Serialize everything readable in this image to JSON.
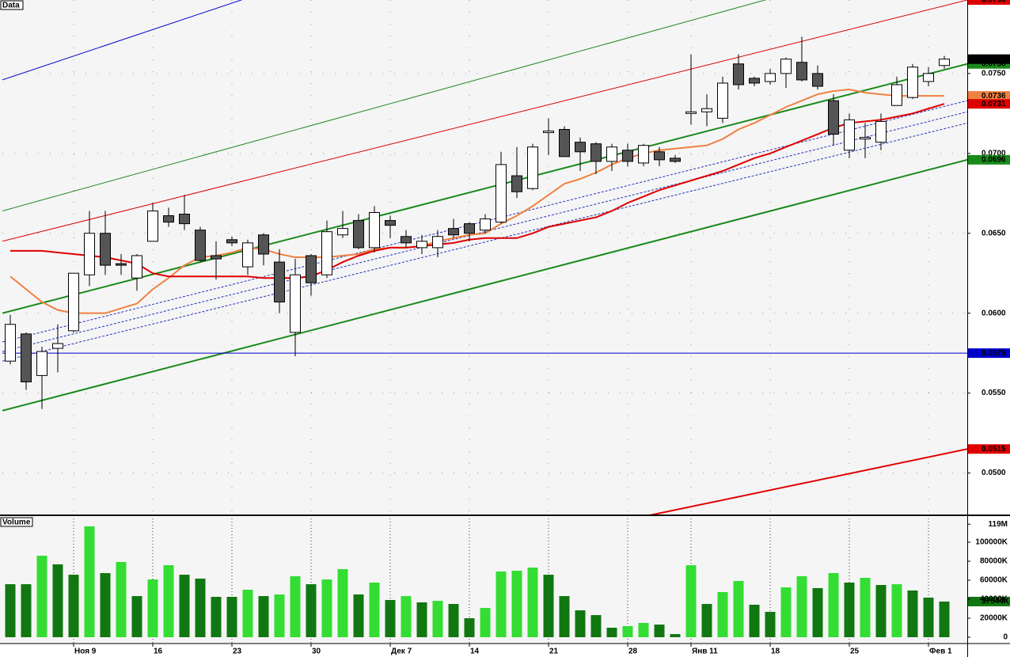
{
  "chart_data": [
    {
      "type": "candlestick",
      "title": "Data",
      "open": [
        0.057,
        0.0587,
        0.0561,
        0.0578,
        0.0589,
        0.0624,
        0.065,
        0.0631,
        0.0622,
        0.0645,
        0.0661,
        0.0662,
        0.0652,
        0.0636,
        0.0646,
        0.0629,
        0.0649,
        0.0632,
        0.0588,
        0.0636,
        0.0624,
        0.0649,
        0.0658,
        0.0641,
        0.0658,
        0.0648,
        0.0641,
        0.0641,
        0.0653,
        0.0656,
        0.0652,
        0.0657,
        0.0686,
        0.0678,
        0.0713,
        0.0715,
        0.0707,
        0.0706,
        0.0695,
        0.0702,
        0.0694,
        0.0701,
        0.0697,
        0.0725,
        0.0726,
        0.0722,
        0.0756,
        0.0747,
        0.0745,
        0.075,
        0.0757,
        0.075,
        0.0733,
        0.0702,
        0.0709,
        0.0707,
        0.073,
        0.0735,
        0.0745,
        0.0755
      ],
      "high": [
        0.0599,
        0.0588,
        0.0579,
        0.0593,
        0.0625,
        0.0664,
        0.0664,
        0.0637,
        0.0637,
        0.0669,
        0.0666,
        0.0674,
        0.0654,
        0.0645,
        0.0648,
        0.0646,
        0.065,
        0.064,
        0.0634,
        0.0637,
        0.0658,
        0.0664,
        0.0662,
        0.0667,
        0.0661,
        0.0652,
        0.0649,
        0.0652,
        0.0659,
        0.0657,
        0.0662,
        0.0701,
        0.0704,
        0.0706,
        0.0722,
        0.0717,
        0.071,
        0.0707,
        0.0706,
        0.0706,
        0.0706,
        0.0704,
        0.0699,
        0.0762,
        0.0737,
        0.0748,
        0.0762,
        0.0748,
        0.0753,
        0.076,
        0.0773,
        0.0755,
        0.0737,
        0.0725,
        0.0719,
        0.0725,
        0.0748,
        0.0756,
        0.0754,
        0.0761
      ],
      "low": [
        0.0568,
        0.0552,
        0.054,
        0.0563,
        0.0588,
        0.0617,
        0.0624,
        0.0624,
        0.0614,
        0.0645,
        0.0654,
        0.0652,
        0.0632,
        0.0621,
        0.0642,
        0.0624,
        0.063,
        0.06,
        0.0573,
        0.0611,
        0.0622,
        0.0647,
        0.064,
        0.0638,
        0.0647,
        0.0641,
        0.0637,
        0.0635,
        0.0647,
        0.0645,
        0.065,
        0.0656,
        0.0672,
        0.0677,
        0.0699,
        0.0698,
        0.0689,
        0.0687,
        0.0689,
        0.0692,
        0.0692,
        0.0692,
        0.0694,
        0.0718,
        0.0717,
        0.0719,
        0.074,
        0.0742,
        0.0743,
        0.0741,
        0.0745,
        0.074,
        0.0705,
        0.0697,
        0.0697,
        0.0702,
        0.073,
        0.0734,
        0.0742,
        0.0753
      ],
      "close": [
        0.0593,
        0.0557,
        0.0576,
        0.0581,
        0.0625,
        0.065,
        0.063,
        0.063,
        0.0636,
        0.0664,
        0.0657,
        0.0656,
        0.0633,
        0.0634,
        0.0644,
        0.0644,
        0.0637,
        0.0607,
        0.0624,
        0.0619,
        0.0651,
        0.0653,
        0.0641,
        0.0663,
        0.0655,
        0.0644,
        0.0645,
        0.0648,
        0.0649,
        0.065,
        0.0659,
        0.0693,
        0.0676,
        0.0704,
        0.0714,
        0.0698,
        0.0701,
        0.0695,
        0.0704,
        0.0695,
        0.0705,
        0.0696,
        0.0695,
        0.0726,
        0.0728,
        0.0744,
        0.0743,
        0.0744,
        0.075,
        0.0759,
        0.0746,
        0.0742,
        0.0712,
        0.0721,
        0.071,
        0.072,
        0.0743,
        0.0754,
        0.075,
        0.0759
      ],
      "up_color": "#ffffff",
      "down_color": "#555555",
      "ylim": [
        0.0474,
        0.0796
      ],
      "yticks": [
        {
          "value": 0.05,
          "label": "0.0500"
        },
        {
          "value": 0.055,
          "label": "0.0550"
        },
        {
          "value": 0.06,
          "label": "0.0600"
        },
        {
          "value": 0.065,
          "label": "0.0650"
        },
        {
          "value": 0.07,
          "label": "0.0700"
        },
        {
          "value": 0.075,
          "label": "0.0750"
        }
      ],
      "grid": true,
      "last_price_label": true,
      "overlays": [
        {
          "color": "#f08040",
          "label_right": true,
          "values": [
            0.0623,
            0.0615,
            0.0607,
            0.0602,
            0.06,
            0.06,
            0.06,
            0.0603,
            0.0606,
            0.0615,
            0.0622,
            0.063,
            0.0635,
            0.0636,
            0.0638,
            0.0641,
            0.064,
            0.0637,
            0.0635,
            0.0635,
            0.0635,
            0.0636,
            0.0637,
            0.064,
            0.0641,
            0.0641,
            0.0642,
            0.0645,
            0.0647,
            0.0649,
            0.065,
            0.0656,
            0.0661,
            0.0667,
            0.0674,
            0.0681,
            0.0684,
            0.0688,
            0.0693,
            0.0697,
            0.07,
            0.0702,
            0.0703,
            0.0704,
            0.0705,
            0.0709,
            0.0715,
            0.0719,
            0.0724,
            0.0729,
            0.0733,
            0.0737,
            0.0739,
            0.074,
            0.0738,
            0.0737,
            0.0736,
            0.0736,
            0.0736,
            0.0736
          ]
        },
        {
          "color": "#e00000",
          "label_right": true,
          "values": [
            0.0639,
            0.0639,
            0.0639,
            0.0638,
            0.0637,
            0.0636,
            0.0635,
            0.0633,
            0.0631,
            0.0625,
            0.0623,
            0.0623,
            0.0623,
            0.0623,
            0.0623,
            0.0623,
            0.0622,
            0.0622,
            0.0622,
            0.0623,
            0.0627,
            0.0632,
            0.0636,
            0.0639,
            0.0641,
            0.0641,
            0.0642,
            0.0643,
            0.0644,
            0.0646,
            0.0647,
            0.0647,
            0.0647,
            0.065,
            0.0654,
            0.0656,
            0.0658,
            0.066,
            0.0664,
            0.0669,
            0.0673,
            0.0677,
            0.068,
            0.0683,
            0.0686,
            0.0689,
            0.0693,
            0.0697,
            0.07,
            0.0704,
            0.0708,
            0.0712,
            0.0716,
            0.0719,
            0.072,
            0.0721,
            0.0723,
            0.0725,
            0.0728,
            0.0731
          ]
        }
      ],
      "price_lines": [
        {
          "color": "#0000cc",
          "width": 1,
          "values": [
            0.0746,
            0.0948
          ]
        },
        {
          "color": "#228822",
          "width": 1,
          "values": [
            0.0664,
            0.0831
          ]
        },
        {
          "color": "#e00000",
          "width": 1,
          "values": [
            0.0645,
            0.0796
          ],
          "label_right": true
        },
        {
          "color": "#1a8a1a",
          "width": 2,
          "values": [
            0.06,
            0.0756
          ],
          "label_right": true
        },
        {
          "color": "#1a8a1a",
          "width": 2,
          "values": [
            0.0539,
            0.0696
          ],
          "label_right": true
        },
        {
          "color": "#0000cc",
          "width": 1,
          "values": [
            0.0575,
            0.0575
          ],
          "label_right": true
        },
        {
          "color": "#e00000",
          "width": 2,
          "values": [
            0.0389,
            0.0515
          ],
          "label_right": true
        },
        {
          "color": "#2233bb",
          "width": 1,
          "dashed": true,
          "values": [
            0.0582,
            0.0733
          ]
        },
        {
          "color": "#2233bb",
          "width": 1,
          "dashed": true,
          "values": [
            0.0576,
            0.0726
          ]
        },
        {
          "color": "#2233bb",
          "width": 1,
          "dashed": true,
          "values": [
            0.057,
            0.0719
          ]
        }
      ]
    },
    {
      "type": "bar",
      "title": "Volume",
      "categories": [
        null,
        null,
        null,
        null,
        "Ноя 9",
        null,
        null,
        null,
        null,
        "16",
        null,
        null,
        null,
        null,
        "23",
        null,
        null,
        null,
        null,
        "30",
        null,
        null,
        null,
        null,
        "Дек 7",
        null,
        null,
        null,
        null,
        "14",
        null,
        null,
        null,
        null,
        "21",
        null,
        null,
        null,
        null,
        "28",
        null,
        null,
        null,
        "Янв 11",
        null,
        null,
        null,
        null,
        "18",
        null,
        null,
        null,
        null,
        "25",
        null,
        null,
        null,
        null,
        "Фев 1",
        null
      ],
      "values": [
        55800,
        55800,
        85800,
        76700,
        65800,
        116700,
        67500,
        79200,
        43300,
        60800,
        75800,
        65800,
        61700,
        42500,
        42500,
        50000,
        43300,
        45000,
        64200,
        55800,
        60800,
        71700,
        45000,
        57500,
        39200,
        43300,
        36700,
        38300,
        35000,
        20000,
        30800,
        69200,
        70000,
        73300,
        65800,
        43300,
        28300,
        23300,
        10000,
        11700,
        15000,
        13300,
        3300,
        75800,
        35000,
        47500,
        59200,
        34200,
        26700,
        52500,
        64200,
        51700,
        67500,
        57500,
        62500,
        55000,
        55800,
        49200,
        41700,
        37544
      ],
      "value_labels": [
        null,
        null,
        null,
        null,
        null,
        null,
        null,
        null,
        null,
        null,
        null,
        null,
        null,
        null,
        null,
        null,
        null,
        null,
        null,
        null,
        null,
        null,
        null,
        null,
        null,
        null,
        null,
        null,
        null,
        null,
        null,
        null,
        null,
        null,
        null,
        null,
        null,
        null,
        null,
        null,
        null,
        null,
        null,
        null,
        null,
        null,
        null,
        null,
        null,
        null,
        null,
        null,
        null,
        null,
        null,
        null,
        null,
        null,
        null,
        "37544K"
      ],
      "up_color": "#33dd33",
      "down_color": "#117711",
      "ylim": [
        0,
        125000
      ],
      "yticks": [
        0,
        {
          "value": 20000,
          "label": "20000K"
        },
        {
          "value": 40000,
          "label": "40000K"
        },
        {
          "value": 60000,
          "label": "60000K"
        },
        {
          "value": 80000,
          "label": "80000K"
        },
        {
          "value": 100000,
          "label": "100000K"
        },
        {
          "value": 119000,
          "label": "119M"
        }
      ]
    }
  ]
}
